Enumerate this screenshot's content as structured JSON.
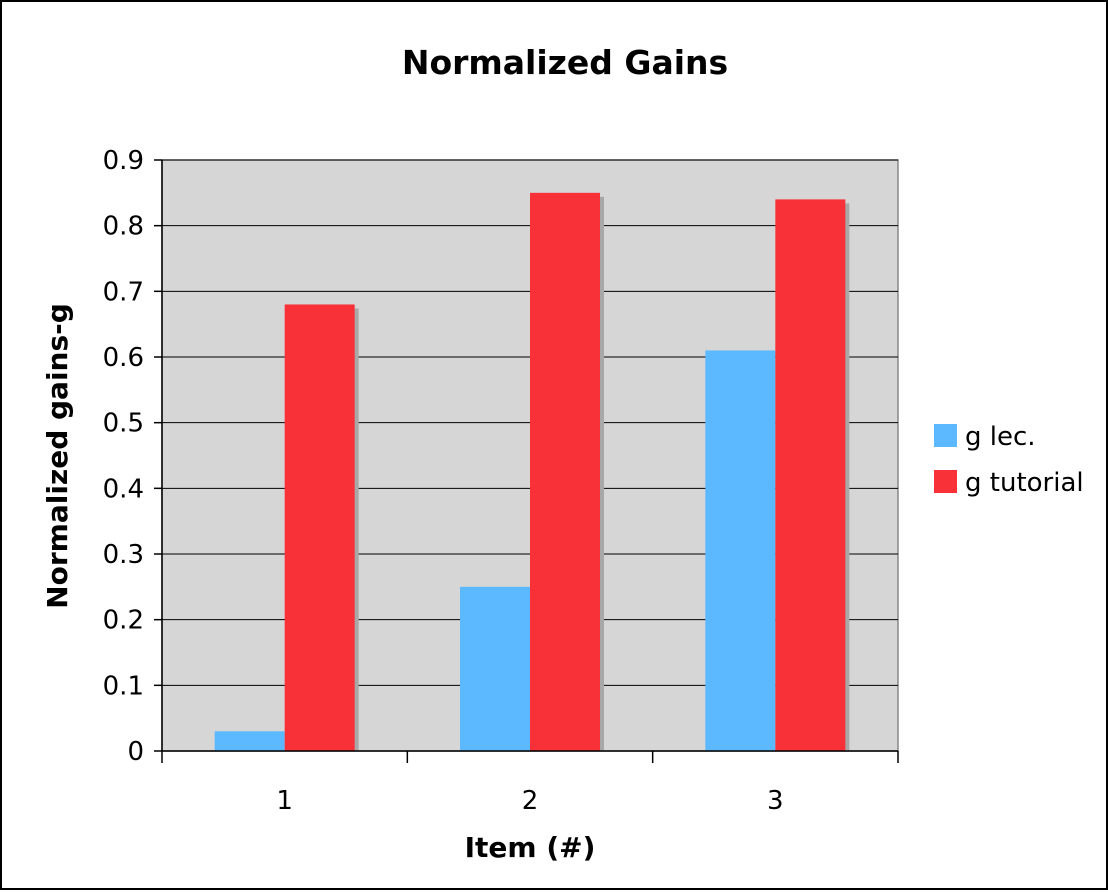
{
  "chart_data": {
    "type": "bar",
    "title": "Normalized Gains",
    "xlabel": "Item (#)",
    "ylabel": "Normalized gains-g",
    "categories": [
      "1",
      "2",
      "3"
    ],
    "series": [
      {
        "name": "g lec.",
        "values": [
          0.03,
          0.25,
          0.61
        ],
        "color": "#5cb8ff"
      },
      {
        "name": "g tutorial",
        "values": [
          0.68,
          0.85,
          0.84
        ],
        "color": "#f83038"
      }
    ],
    "ylim": [
      0,
      0.9
    ],
    "yticks": [
      "0",
      "0.1",
      "0.2",
      "0.3",
      "0.4",
      "0.5",
      "0.6",
      "0.7",
      "0.8",
      "0.9"
    ],
    "grid": true,
    "legend": "right",
    "plot_background": "#d6d6d6",
    "shadow_color": "#a8a8a8"
  }
}
